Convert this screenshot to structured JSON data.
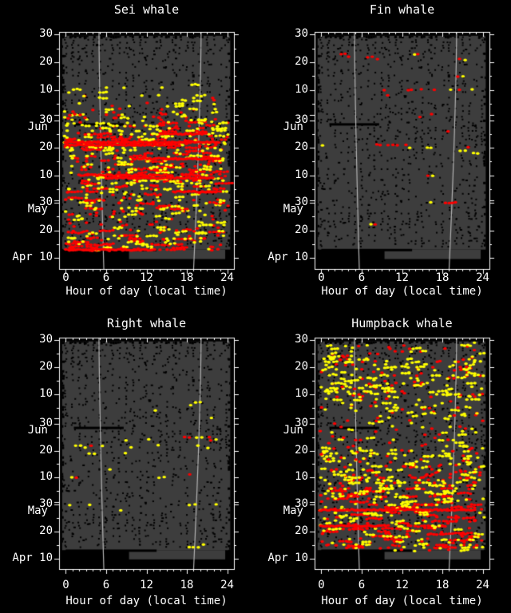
{
  "chart_data": {
    "type": "scatter",
    "description": "Acoustic whale call detections raster: hour of day (x) vs date (y, Apr 6 = day 0 to Jul 1 = day 86). Gray = recording effort, black = no data, dots = detections, pale lines = sunrise and sunset.",
    "x_axis": {
      "label": "Hour of day (local time)",
      "range": [
        -1,
        25
      ],
      "ticks": [
        {
          "h": 0,
          "label": "0"
        },
        {
          "h": 6,
          "label": "6"
        },
        {
          "h": 12,
          "label": "12"
        },
        {
          "h": 18,
          "label": "18"
        },
        {
          "h": 24,
          "label": "24"
        }
      ],
      "minor_tick_every_hours": 1
    },
    "y_axis": {
      "day0_date": "Apr 6",
      "range_days": [
        0,
        86
      ],
      "ticks": [
        {
          "d": 85,
          "label": "30"
        },
        {
          "d": 75,
          "label": "20"
        },
        {
          "d": 65,
          "label": "10"
        },
        {
          "d": 54,
          "label": "30"
        },
        {
          "d": 54,
          "label": "Jun",
          "month": true
        },
        {
          "d": 44,
          "label": "20"
        },
        {
          "d": 34,
          "label": "10"
        },
        {
          "d": 24,
          "label": "30"
        },
        {
          "d": 24,
          "label": "May",
          "month": true
        },
        {
          "d": 14,
          "label": "20"
        },
        {
          "d": 4,
          "label": "Apr 10"
        }
      ],
      "major_tick_days": [
        4,
        14,
        24,
        25,
        34,
        44,
        54,
        56,
        65,
        75,
        85
      ],
      "minor_tick_days": [
        9,
        19,
        29,
        39,
        49,
        60,
        70,
        80
      ]
    },
    "sun_lines": {
      "sunrise": {
        "apr6_hour": 5.65,
        "jun30_hour": 4.93
      },
      "sunset": {
        "apr6_hour": 19.0,
        "jun30_hour": 20.12
      }
    },
    "effort_gaps": [
      {
        "d": 7.0,
        "h0": 0.0,
        "h1": 13.5
      },
      {
        "d": 52.6,
        "h0": 1.2,
        "h1": 8.6
      }
    ],
    "panels": [
      {
        "title": "Sei whale",
        "bands": [
          {
            "d0": 7,
            "d1": 8,
            "red": 26,
            "yellow": 6,
            "runs": true
          },
          {
            "d0": 9,
            "d1": 14,
            "red": 16,
            "yellow": 9,
            "runs": true
          },
          {
            "d0": 15,
            "d1": 21,
            "red": 5,
            "yellow": 6,
            "runs": false
          },
          {
            "d0": 22,
            "d1": 27,
            "red": 12,
            "yellow": 10,
            "runs": true
          },
          {
            "d0": 28,
            "d1": 31,
            "red": 10,
            "yellow": 10,
            "runs": true
          },
          {
            "d0": 32,
            "d1": 38,
            "red": 18,
            "yellow": 10,
            "runs": true
          },
          {
            "d0": 39,
            "d1": 42,
            "red": 12,
            "yellow": 12,
            "runs": true
          },
          {
            "d0": 43,
            "d1": 47,
            "red": 20,
            "yellow": 12,
            "runs": true
          },
          {
            "d0": 48,
            "d1": 53,
            "red": 10,
            "yellow": 12,
            "runs": true
          },
          {
            "d0": 54,
            "d1": 58,
            "red": 5,
            "yellow": 7,
            "runs": false
          },
          {
            "d0": 59,
            "d1": 63,
            "red": 1,
            "yellow": 4,
            "runs": false
          },
          {
            "d0": 64,
            "d1": 67,
            "red": 0,
            "yellow": 2,
            "runs": false
          }
        ],
        "streaks": [
          {
            "d": 7,
            "h0": 0,
            "h1": 13.4
          },
          {
            "d": 28,
            "h0": 16,
            "h1": 23
          },
          {
            "d": 33,
            "h0": 6,
            "h1": 22
          },
          {
            "d": 34,
            "h0": 2,
            "h1": 16
          },
          {
            "d": 40,
            "h0": 10,
            "h1": 23
          },
          {
            "d": 45,
            "h0": 0,
            "h1": 17
          },
          {
            "d": 46,
            "h0": 0,
            "h1": 23
          },
          {
            "d": 49,
            "h0": 14,
            "h1": 21
          }
        ],
        "points": [
          [
            56,
            0.6,
            "r"
          ],
          [
            56,
            1.3,
            "r"
          ],
          [
            56,
            2.1,
            "r"
          ],
          [
            57,
            1.0,
            "r"
          ],
          [
            55,
            2.8,
            "r"
          ]
        ]
      },
      {
        "title": "Fin whale",
        "bands": [],
        "streaks": [],
        "points": [
          [
            78,
            2.9,
            "r"
          ],
          [
            78,
            3.6,
            "r"
          ],
          [
            77,
            4.0,
            "r"
          ],
          [
            78,
            13.9,
            "y"
          ],
          [
            78,
            14.3,
            "r"
          ],
          [
            77,
            6.9,
            "r"
          ],
          [
            77,
            7.6,
            "r"
          ],
          [
            76,
            8.3,
            "r"
          ],
          [
            76,
            20.6,
            "r"
          ],
          [
            76,
            21.4,
            "y"
          ],
          [
            70,
            20.3,
            "r"
          ],
          [
            70,
            21.1,
            "y"
          ],
          [
            65,
            9.4,
            "r"
          ],
          [
            65,
            12.9,
            "r"
          ],
          [
            65,
            13.4,
            "r"
          ],
          [
            65,
            14.9,
            "r"
          ],
          [
            65,
            16.8,
            "r"
          ],
          [
            65,
            19.3,
            "y"
          ],
          [
            65,
            20.6,
            "r"
          ],
          [
            65,
            22.4,
            "y"
          ],
          [
            63,
            9.9,
            "r"
          ],
          [
            56,
            16.4,
            "r"
          ],
          [
            55,
            14.6,
            "r"
          ],
          [
            50,
            18.9,
            "r"
          ],
          [
            45,
            0.2,
            "y"
          ],
          [
            45,
            8.3,
            "r"
          ],
          [
            45,
            8.8,
            "r"
          ],
          [
            45,
            9.9,
            "r"
          ],
          [
            45,
            10.7,
            "r"
          ],
          [
            45,
            11.3,
            "r"
          ],
          [
            45,
            12.6,
            "r"
          ],
          [
            44,
            13.1,
            "y"
          ],
          [
            44,
            15.7,
            "y"
          ],
          [
            44,
            16.3,
            "y"
          ],
          [
            43,
            20.7,
            "y"
          ],
          [
            43,
            21.4,
            "y"
          ],
          [
            44,
            21.9,
            "r"
          ],
          [
            42,
            22.6,
            "y"
          ],
          [
            42,
            23.3,
            "y"
          ],
          [
            34,
            15.9,
            "r"
          ],
          [
            34,
            16.6,
            "y"
          ],
          [
            24,
            16.3,
            "y"
          ],
          [
            24,
            18.5,
            "r"
          ],
          [
            24,
            19.0,
            "r"
          ],
          [
            24,
            19.5,
            "r"
          ],
          [
            24,
            20.0,
            "r"
          ],
          [
            16,
            7.4,
            "y"
          ],
          [
            16,
            8.0,
            "r"
          ]
        ]
      },
      {
        "title": "Right whale",
        "bands": [],
        "streaks": [],
        "points": [
          [
            62,
            19.3,
            "y"
          ],
          [
            62,
            20.0,
            "y"
          ],
          [
            61,
            18.6,
            "y"
          ],
          [
            59,
            13.3,
            "y"
          ],
          [
            56,
            21.6,
            "y"
          ],
          [
            49,
            17.6,
            "r"
          ],
          [
            49,
            18.3,
            "r"
          ],
          [
            49,
            19.4,
            "y"
          ],
          [
            49,
            20.2,
            "y"
          ],
          [
            49,
            21.3,
            "r"
          ],
          [
            48,
            8.9,
            "y"
          ],
          [
            48,
            12.4,
            "y"
          ],
          [
            48,
            21.6,
            "r"
          ],
          [
            48,
            22.3,
            "y"
          ],
          [
            46,
            1.4,
            "y"
          ],
          [
            46,
            2.2,
            "y"
          ],
          [
            46,
            3.7,
            "r"
          ],
          [
            46,
            5.5,
            "y"
          ],
          [
            46,
            13.7,
            "y"
          ],
          [
            46,
            19.6,
            "y"
          ],
          [
            45,
            2.9,
            "y"
          ],
          [
            45,
            9.7,
            "y"
          ],
          [
            45,
            21.1,
            "y"
          ],
          [
            43,
            3.5,
            "y"
          ],
          [
            43,
            4.2,
            "y"
          ],
          [
            43,
            8.9,
            "y"
          ],
          [
            37,
            6.5,
            "y"
          ],
          [
            35,
            18.4,
            "r"
          ],
          [
            34,
            0.9,
            "y"
          ],
          [
            34,
            1.6,
            "r"
          ],
          [
            34,
            13.9,
            "y"
          ],
          [
            34,
            14.7,
            "y"
          ],
          [
            24,
            0.6,
            "y"
          ],
          [
            24,
            3.5,
            "y"
          ],
          [
            24,
            18.4,
            "y"
          ],
          [
            24,
            19.2,
            "y"
          ],
          [
            24,
            22.4,
            "y"
          ],
          [
            22,
            8.2,
            "y"
          ],
          [
            8,
            18.3,
            "y"
          ],
          [
            8,
            19.0,
            "y"
          ],
          [
            8,
            19.7,
            "y"
          ],
          [
            9,
            20.5,
            "y"
          ]
        ]
      },
      {
        "title": "Humpback whale",
        "bands": [
          {
            "d0": 7,
            "d1": 7,
            "red": 3,
            "yellow": 4,
            "runs": false
          },
          {
            "d0": 8,
            "d1": 20,
            "red": 16,
            "yellow": 8,
            "runs": true
          },
          {
            "d0": 21,
            "d1": 30,
            "red": 14,
            "yellow": 12,
            "runs": true
          },
          {
            "d0": 31,
            "d1": 38,
            "red": 8,
            "yellow": 12,
            "runs": false
          },
          {
            "d0": 39,
            "d1": 44,
            "red": 4,
            "yellow": 10,
            "runs": false
          },
          {
            "d0": 45,
            "d1": 52,
            "red": 2,
            "yellow": 4,
            "runs": false
          },
          {
            "d0": 53,
            "d1": 56,
            "red": 2,
            "yellow": 2,
            "runs": false
          },
          {
            "d0": 57,
            "d1": 62,
            "red": 2,
            "yellow": 6,
            "runs": false
          },
          {
            "d0": 63,
            "d1": 70,
            "red": 4,
            "yellow": 13,
            "runs": false
          },
          {
            "d0": 71,
            "d1": 78,
            "red": 5,
            "yellow": 13,
            "runs": false
          },
          {
            "d0": 79,
            "d1": 83,
            "red": 3,
            "yellow": 6,
            "runs": false
          }
        ],
        "streaks": [
          {
            "d": 22,
            "h0": 0,
            "h1": 23
          },
          {
            "d": 16,
            "h0": 0,
            "h1": 10
          }
        ],
        "points": [
          [
            84,
            22.8,
            "y"
          ],
          [
            83,
            22.2,
            "y"
          ],
          [
            55,
            3.9,
            "r"
          ],
          [
            60,
            14.9,
            "y"
          ],
          [
            60,
            15.4,
            "y"
          ],
          [
            60,
            16.1,
            "r"
          ]
        ]
      }
    ]
  },
  "colors": {
    "background": "#000000",
    "effort_gray": "#3d3d3d",
    "no_data_black": "#000000",
    "detection_red": "#ff0000",
    "detection_yellow": "#ffff00",
    "sun_line": "#b4b4b4",
    "axis": "#ffffff",
    "text": "#ffffff"
  }
}
